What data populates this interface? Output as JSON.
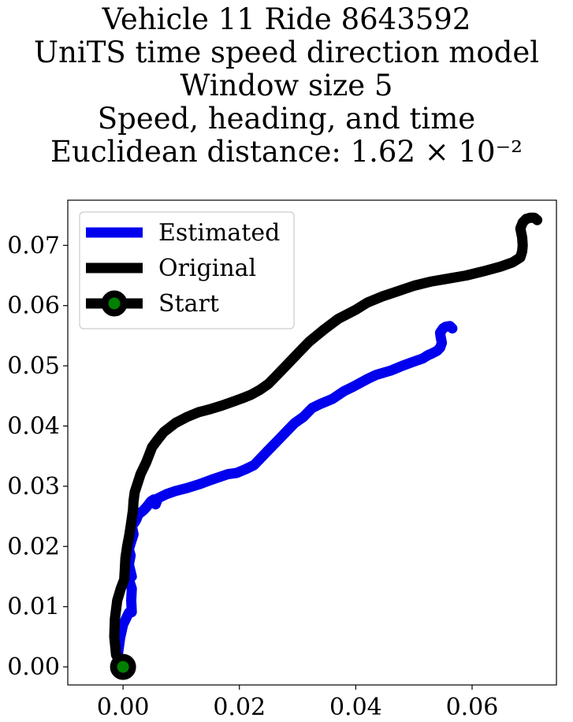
{
  "chart_data": {
    "type": "line",
    "title_lines": [
      "Vehicle 11 Ride 8643592",
      "UniTS time speed direction model",
      "Window size 5",
      "Speed, heading, and time",
      "Euclidean distance: 1.62 × 10⁻²"
    ],
    "xlabel": "",
    "ylabel": "",
    "xlim": [
      -0.0095,
      0.0745
    ],
    "ylim": [
      -0.003,
      0.0775
    ],
    "x_ticks": [
      0.0,
      0.02,
      0.04,
      0.06
    ],
    "x_tick_labels": [
      "0.00",
      "0.02",
      "0.04",
      "0.06"
    ],
    "y_ticks": [
      0.0,
      0.01,
      0.02,
      0.03,
      0.04,
      0.05,
      0.06,
      0.07
    ],
    "y_tick_labels": [
      "0.00",
      "0.01",
      "0.02",
      "0.03",
      "0.04",
      "0.05",
      "0.06",
      "0.07"
    ],
    "grid": false,
    "legend_position": "top-left",
    "series": [
      {
        "name": "Estimated",
        "color": "#0000ee",
        "x": [
          0.0,
          -0.0009,
          -0.0005,
          0.0,
          0.001,
          0.0015,
          0.0014,
          0.0015,
          0.001,
          0.0015,
          0.001,
          0.0013,
          0.001,
          0.0013,
          0.0018,
          0.0015,
          0.002,
          0.0023,
          0.0026,
          0.0035,
          0.004,
          0.0048,
          0.0053,
          0.0056,
          0.006,
          0.0075,
          0.009,
          0.011,
          0.013,
          0.015,
          0.0165,
          0.018,
          0.0195,
          0.021,
          0.0225,
          0.0235,
          0.025,
          0.0265,
          0.028,
          0.0295,
          0.031,
          0.0325,
          0.034,
          0.036,
          0.038,
          0.0395,
          0.042,
          0.0435,
          0.046,
          0.048,
          0.05,
          0.0515,
          0.0525,
          0.053,
          0.054,
          0.0545,
          0.0548,
          0.0546,
          0.0545,
          0.055,
          0.0555,
          0.0562,
          0.0566
        ],
        "y": [
          0.0,
          0.002,
          0.0048,
          0.007,
          0.009,
          0.0091,
          0.011,
          0.013,
          0.0145,
          0.015,
          0.017,
          0.0185,
          0.0195,
          0.0205,
          0.022,
          0.0235,
          0.024,
          0.0245,
          0.0253,
          0.026,
          0.0265,
          0.0275,
          0.0278,
          0.027,
          0.028,
          0.0287,
          0.0292,
          0.0297,
          0.0303,
          0.031,
          0.0315,
          0.032,
          0.0322,
          0.0328,
          0.0335,
          0.0345,
          0.036,
          0.0375,
          0.039,
          0.0405,
          0.0415,
          0.043,
          0.0437,
          0.0445,
          0.0458,
          0.0465,
          0.0478,
          0.0485,
          0.0492,
          0.05,
          0.0507,
          0.0512,
          0.0518,
          0.052,
          0.0525,
          0.053,
          0.0538,
          0.0548,
          0.0555,
          0.0562,
          0.0565,
          0.0566,
          0.0562
        ]
      },
      {
        "name": "Original",
        "color": "#000000",
        "x": [
          0.0,
          -0.0012,
          -0.0015,
          -0.0014,
          -0.001,
          -0.0004,
          0.0002,
          0.0003,
          0.0004,
          0.0007,
          0.0011,
          0.0014,
          0.0017,
          0.0018,
          0.002,
          0.003,
          0.004,
          0.005,
          0.006,
          0.007,
          0.009,
          0.011,
          0.013,
          0.015,
          0.017,
          0.019,
          0.0205,
          0.022,
          0.0235,
          0.025,
          0.0265,
          0.028,
          0.03,
          0.032,
          0.0345,
          0.037,
          0.04,
          0.042,
          0.0445,
          0.047,
          0.05,
          0.053,
          0.056,
          0.059,
          0.062,
          0.065,
          0.067,
          0.0683,
          0.0686,
          0.0687,
          0.0686,
          0.0683,
          0.0687,
          0.0693,
          0.07,
          0.0707,
          0.0712
        ],
        "y": [
          0.0,
          0.002,
          0.005,
          0.008,
          0.011,
          0.013,
          0.0145,
          0.016,
          0.018,
          0.02,
          0.022,
          0.024,
          0.026,
          0.0275,
          0.029,
          0.032,
          0.034,
          0.0365,
          0.0378,
          0.039,
          0.0405,
          0.0415,
          0.0423,
          0.0428,
          0.0434,
          0.0441,
          0.0446,
          0.0452,
          0.046,
          0.047,
          0.0485,
          0.05,
          0.052,
          0.054,
          0.056,
          0.0578,
          0.0593,
          0.0605,
          0.0615,
          0.0623,
          0.0633,
          0.064,
          0.0645,
          0.065,
          0.0657,
          0.0665,
          0.0672,
          0.068,
          0.069,
          0.07,
          0.0713,
          0.0728,
          0.0738,
          0.0744,
          0.0746,
          0.0746,
          0.0742
        ]
      }
    ],
    "markers": [
      {
        "name": "Start",
        "x": 0.0,
        "y": 0.0,
        "edge_color": "#000000",
        "fill_color": "#008000"
      }
    ],
    "legend": [
      {
        "label": "Estimated",
        "color": "#0000ee",
        "marker": false
      },
      {
        "label": "Original",
        "color": "#000000",
        "marker": false
      },
      {
        "label": "Start",
        "color": "#000000",
        "marker": true,
        "marker_fill": "#008000"
      }
    ]
  }
}
